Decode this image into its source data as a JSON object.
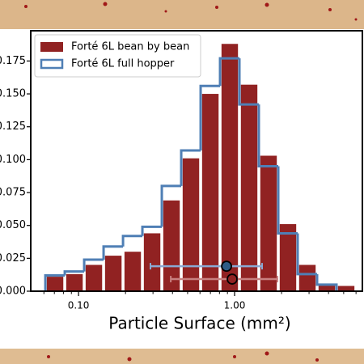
{
  "chart_data": {
    "type": "histogram",
    "xlabel": "Particle Surface (mm²)",
    "xscale": "log",
    "xlim": [
      0.0494,
      6.59
    ],
    "ylim": [
      0,
      0.198
    ],
    "xticks": [
      {
        "value": 0.1,
        "label": "0.10"
      },
      {
        "value": 1,
        "label": "1.00"
      }
    ],
    "xminorticks": [
      0.06,
      0.07,
      0.08,
      0.09,
      0.2,
      0.3,
      0.4,
      0.5,
      0.6,
      0.7,
      0.8,
      0.9,
      2,
      3,
      4,
      5,
      6
    ],
    "yticks": [
      {
        "value": 0,
        "label": "0.000"
      },
      {
        "value": 0.025,
        "label": "0.025"
      },
      {
        "value": 0.05,
        "label": "0.050"
      },
      {
        "value": 0.075,
        "label": "0.075"
      },
      {
        "value": 0.1,
        "label": "0.100"
      },
      {
        "value": 0.125,
        "label": "0.125"
      },
      {
        "value": 0.15,
        "label": "0.150"
      },
      {
        "value": 0.175,
        "label": "0.175"
      }
    ],
    "legend": "upper left",
    "series": [
      {
        "name": "Forté 6L bean by bean",
        "style": "bars",
        "color": "#912222",
        "errorbar_color": "#c98080",
        "bins": [
          0.0613,
          0.0816,
          0.1087,
          0.1447,
          0.1928,
          0.2566,
          0.3417,
          0.455,
          0.6059,
          0.8069,
          1.074,
          1.43,
          1.905,
          2.536,
          3.378,
          4.497,
          5.987
        ],
        "values": [
          0.011,
          0.013,
          0.02,
          0.027,
          0.03,
          0.044,
          0.069,
          0.101,
          0.15,
          0.188,
          0.157,
          0.103,
          0.051,
          0.02,
          0.005,
          0.004
        ],
        "point": {
          "x": 0.965,
          "y": 0.0092,
          "xlow": 0.39,
          "xhigh": 1.88
        }
      },
      {
        "name": "Forté 6L full hopper",
        "style": "step",
        "color": "#4f7fb5",
        "errorbar_color": "#8aaad4",
        "bins": [
          0.0613,
          0.0816,
          0.1087,
          0.1447,
          0.1928,
          0.2566,
          0.3417,
          0.455,
          0.6059,
          0.8069,
          1.074,
          1.43,
          1.905,
          2.536,
          3.378,
          4.497
        ],
        "values": [
          0.012,
          0.015,
          0.024,
          0.034,
          0.042,
          0.049,
          0.08,
          0.107,
          0.156,
          0.177,
          0.142,
          0.095,
          0.044,
          0.013,
          0.005
        ],
        "point": {
          "x": 0.888,
          "y": 0.019,
          "xlow": 0.289,
          "xhigh": 1.5
        }
      }
    ]
  }
}
